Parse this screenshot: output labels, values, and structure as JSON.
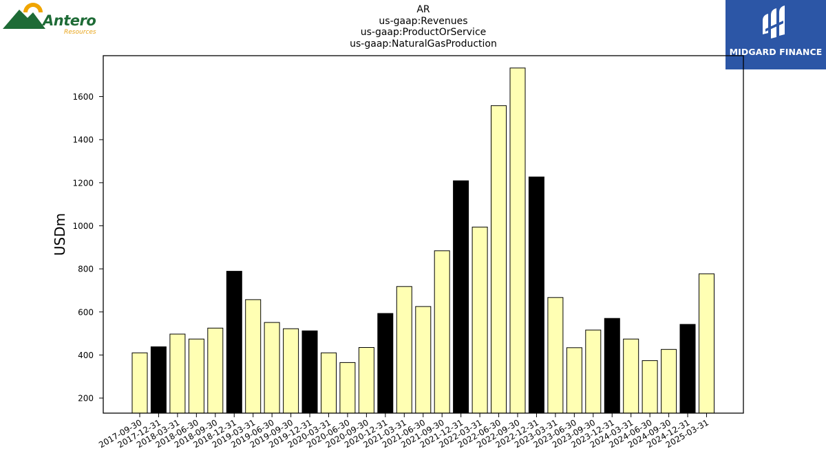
{
  "header": {
    "title_lines": [
      "AR",
      "us-gaap:Revenues",
      "us-gaap:ProductOrService",
      "us-gaap:NaturalGasProduction"
    ]
  },
  "logos": {
    "left": {
      "name": "Antero",
      "subtitle": "Resources",
      "brand_color": "#1e6b36",
      "accent_color": "#f0a500"
    },
    "right": {
      "name": "MIDGARD FINANCE",
      "background": "#2c56a6"
    }
  },
  "chart_data": {
    "type": "bar",
    "ylabel": "USDm",
    "xlabel": "",
    "ylim": [
      130,
      1790
    ],
    "yticks": [
      200,
      400,
      600,
      800,
      1000,
      1200,
      1400,
      1600
    ],
    "grid": false,
    "colors": {
      "default": "#ffffb3",
      "highlight": "#000000",
      "edge": "#000000"
    },
    "categories": [
      "2017-09-30",
      "2017-12-31",
      "2018-03-31",
      "2018-06-30",
      "2018-09-30",
      "2018-12-31",
      "2019-03-31",
      "2019-06-30",
      "2019-09-30",
      "2019-12-31",
      "2020-03-31",
      "2020-06-30",
      "2020-09-30",
      "2020-12-31",
      "2021-03-31",
      "2021-06-30",
      "2021-09-30",
      "2021-12-31",
      "2022-03-31",
      "2022-06-30",
      "2022-09-30",
      "2022-12-31",
      "2023-03-31",
      "2023-06-30",
      "2023-09-30",
      "2023-12-31",
      "2024-03-31",
      "2024-06-30",
      "2024-09-30",
      "2024-12-31",
      "2025-03-31"
    ],
    "values": [
      410,
      438,
      497,
      474,
      525,
      789,
      657,
      551,
      522,
      512,
      410,
      365,
      435,
      593,
      718,
      625,
      884,
      1209,
      994,
      1558,
      1733,
      1227,
      667,
      434,
      516,
      570,
      474,
      374,
      426,
      542,
      777
    ],
    "highlighted": [
      false,
      true,
      false,
      false,
      false,
      true,
      false,
      false,
      false,
      true,
      false,
      false,
      false,
      true,
      false,
      false,
      false,
      true,
      false,
      false,
      false,
      true,
      false,
      false,
      false,
      true,
      false,
      false,
      false,
      true,
      false
    ]
  }
}
